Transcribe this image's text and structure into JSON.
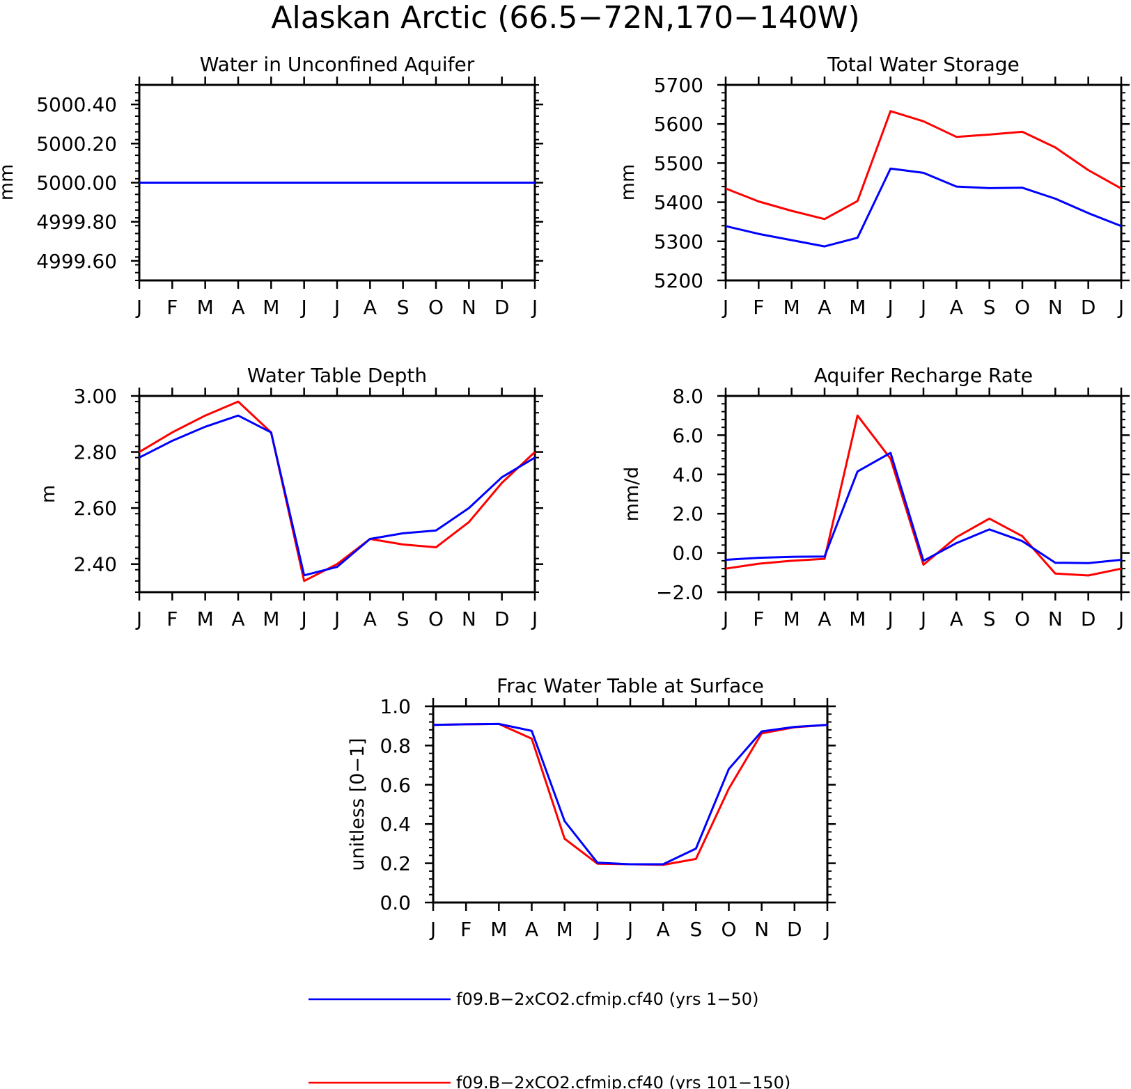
{
  "figure": {
    "title": "Alaskan Arctic (66.5−72N,170−140W)",
    "colors": {
      "series_1": "#0000ff",
      "series_2": "#ff0000",
      "axes": "#000000"
    }
  },
  "legend": {
    "placement": "bottom",
    "entries": [
      {
        "label": "f09.B−2xCO2.cfmip.cf40 (yrs 1−50)",
        "color": "#0000ff"
      },
      {
        "label": "f09.B−2xCO2.cfmip.cf40 (yrs 101−150)",
        "color": "#ff0000"
      }
    ]
  },
  "chart_data": [
    {
      "type": "line",
      "title": "Water in Unconfined Aquifer",
      "ylabel": "mm",
      "xlabel": "",
      "x_ticks": [
        "J",
        "F",
        "M",
        "A",
        "M",
        "J",
        "J",
        "A",
        "S",
        "O",
        "N",
        "D",
        "J"
      ],
      "ylim": [
        4999.5,
        5000.5
      ],
      "y_ticks": [
        "4999.60",
        "4999.80",
        "5000.00",
        "5000.20",
        "5000.40"
      ],
      "grid": false,
      "series": [
        {
          "color": "#ff0000",
          "values": [
            5000,
            5000,
            5000,
            5000,
            5000,
            5000,
            5000,
            5000,
            5000,
            5000,
            5000,
            5000,
            5000
          ]
        },
        {
          "color": "#0000ff",
          "values": [
            5000,
            5000,
            5000,
            5000,
            5000,
            5000,
            5000,
            5000,
            5000,
            5000,
            5000,
            5000,
            5000
          ]
        }
      ]
    },
    {
      "type": "line",
      "title": "Total Water Storage",
      "ylabel": "mm",
      "xlabel": "",
      "x_ticks": [
        "J",
        "F",
        "M",
        "A",
        "M",
        "J",
        "J",
        "A",
        "S",
        "O",
        "N",
        "D",
        "J"
      ],
      "ylim": [
        5200,
        5700
      ],
      "y_ticks": [
        "5200",
        "5300",
        "5400",
        "5500",
        "5600",
        "5700"
      ],
      "grid": false,
      "series": [
        {
          "color": "#ff0000",
          "values": [
            5435,
            5402,
            5378,
            5357,
            5403,
            5633,
            5607,
            5567,
            5573,
            5580,
            5540,
            5482,
            5435
          ]
        },
        {
          "color": "#0000ff",
          "values": [
            5339,
            5319,
            5303,
            5287,
            5309,
            5486,
            5475,
            5440,
            5436,
            5437,
            5409,
            5372,
            5339
          ]
        }
      ]
    },
    {
      "type": "line",
      "title": "Water Table Depth",
      "ylabel": "m",
      "xlabel": "",
      "x_ticks": [
        "J",
        "F",
        "M",
        "A",
        "M",
        "J",
        "J",
        "A",
        "S",
        "O",
        "N",
        "D",
        "J"
      ],
      "ylim": [
        2.3,
        3.0
      ],
      "y_ticks": [
        "2.40",
        "2.60",
        "2.80",
        "3.00"
      ],
      "grid": false,
      "series": [
        {
          "color": "#ff0000",
          "values": [
            2.8,
            2.87,
            2.93,
            2.98,
            2.87,
            2.34,
            2.4,
            2.49,
            2.47,
            2.46,
            2.55,
            2.69,
            2.8
          ]
        },
        {
          "color": "#0000ff",
          "values": [
            2.78,
            2.84,
            2.89,
            2.93,
            2.87,
            2.36,
            2.39,
            2.49,
            2.51,
            2.52,
            2.6,
            2.71,
            2.78
          ]
        }
      ]
    },
    {
      "type": "line",
      "title": "Aquifer Recharge Rate",
      "ylabel": "mm/d",
      "xlabel": "",
      "x_ticks": [
        "J",
        "F",
        "M",
        "A",
        "M",
        "J",
        "J",
        "A",
        "S",
        "O",
        "N",
        "D",
        "J"
      ],
      "ylim": [
        -2.0,
        8.0
      ],
      "y_ticks": [
        "−2.0",
        "0.0",
        "2.0",
        "4.0",
        "6.0",
        "8.0"
      ],
      "grid": false,
      "series": [
        {
          "color": "#ff0000",
          "values": [
            -0.8,
            -0.55,
            -0.4,
            -0.3,
            7.0,
            4.8,
            -0.6,
            0.8,
            1.75,
            0.85,
            -1.05,
            -1.15,
            -0.8
          ]
        },
        {
          "color": "#0000ff",
          "values": [
            -0.35,
            -0.25,
            -0.2,
            -0.18,
            4.15,
            5.1,
            -0.4,
            0.5,
            1.2,
            0.6,
            -0.5,
            -0.52,
            -0.35
          ]
        }
      ]
    },
    {
      "type": "line",
      "title": "Frac Water Table at Surface",
      "ylabel": "unitless [0−1]",
      "xlabel": "",
      "x_ticks": [
        "J",
        "F",
        "M",
        "A",
        "M",
        "J",
        "J",
        "A",
        "S",
        "O",
        "N",
        "D",
        "J"
      ],
      "ylim": [
        0.0,
        1.0
      ],
      "y_ticks": [
        "0.0",
        "0.2",
        "0.4",
        "0.6",
        "0.8",
        "1.0"
      ],
      "grid": false,
      "series": [
        {
          "color": "#ff0000",
          "values": [
            0.905,
            0.908,
            0.91,
            0.835,
            0.325,
            0.198,
            0.195,
            0.192,
            0.222,
            0.58,
            0.862,
            0.893,
            0.905
          ]
        },
        {
          "color": "#0000ff",
          "values": [
            0.905,
            0.908,
            0.91,
            0.875,
            0.415,
            0.203,
            0.195,
            0.195,
            0.275,
            0.68,
            0.872,
            0.895,
            0.905
          ]
        }
      ]
    }
  ]
}
